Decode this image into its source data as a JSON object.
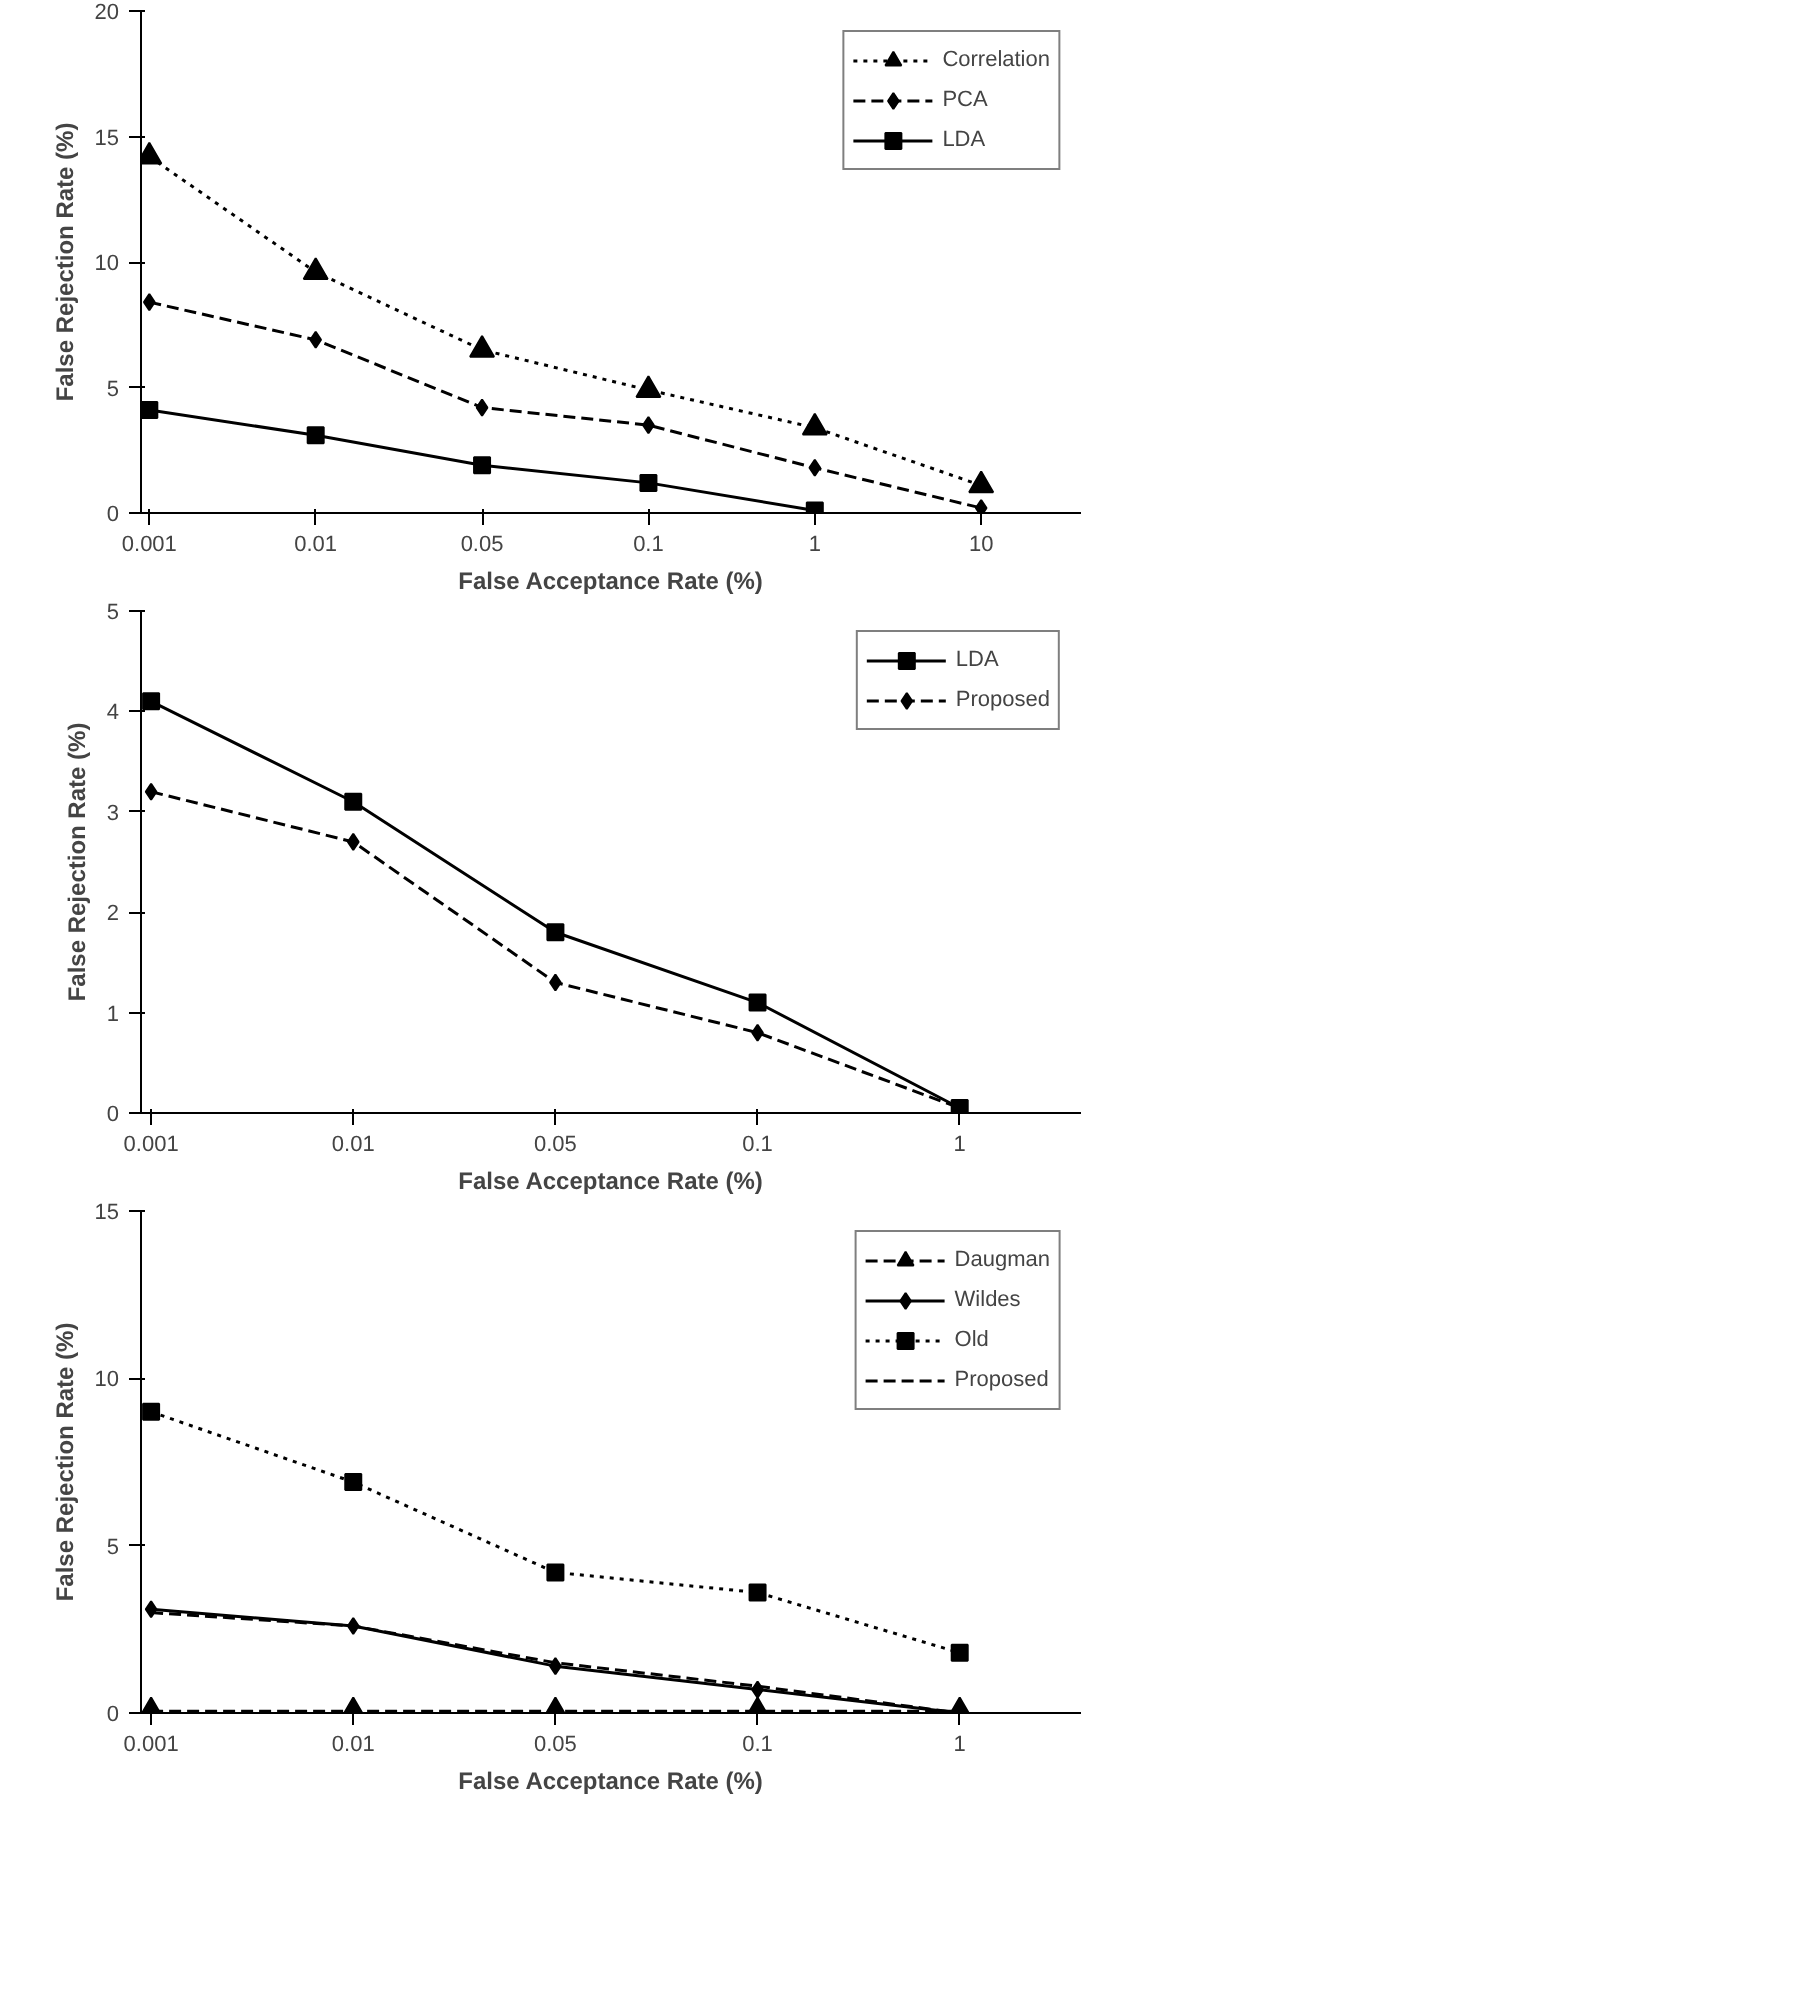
{
  "chart_data": [
    {
      "type": "line",
      "xlabel": "False Acceptance Rate (%)",
      "ylabel": "False Rejection Rate (%)",
      "categories": [
        "0.001",
        "0.01",
        "0.05",
        "0.1",
        "1",
        "10"
      ],
      "ylim": [
        0,
        20
      ],
      "yticks": [
        0,
        5,
        10,
        15,
        20
      ],
      "grid": false,
      "legend": "top right",
      "series": [
        {
          "name": "Correlation",
          "color": "#000000",
          "marker": "triangle",
          "line_style": "dotted",
          "values": [
            14.2,
            9.6,
            6.5,
            4.9,
            3.4,
            1.1
          ]
        },
        {
          "name": "PCA",
          "color": "#000000",
          "marker": "diamond",
          "line_style": "dashed",
          "values": [
            8.4,
            6.9,
            4.2,
            3.5,
            1.8,
            0.2
          ]
        },
        {
          "name": "LDA",
          "color": "#000000",
          "marker": "square",
          "line_style": "solid",
          "values": [
            4.1,
            3.1,
            1.9,
            1.2,
            0.1,
            null
          ]
        }
      ]
    },
    {
      "type": "line",
      "xlabel": "False Acceptance Rate (%)",
      "ylabel": "False Rejection Rate (%)",
      "categories": [
        "0.001",
        "0.01",
        "0.05",
        "0.1",
        "1"
      ],
      "ylim": [
        0,
        5
      ],
      "yticks": [
        0,
        1,
        2,
        3,
        4,
        5
      ],
      "grid": false,
      "legend": "top right",
      "series": [
        {
          "name": "LDA",
          "color": "#000000",
          "marker": "square",
          "line_style": "solid",
          "values": [
            4.1,
            3.1,
            1.8,
            1.1,
            0.05
          ]
        },
        {
          "name": "Proposed",
          "color": "#000000",
          "marker": "diamond",
          "line_style": "dashed",
          "values": [
            3.2,
            2.7,
            1.3,
            0.8,
            0.05
          ]
        }
      ]
    },
    {
      "type": "line",
      "xlabel": "False Acceptance Rate (%)",
      "ylabel": "False Rejection Rate (%)",
      "categories": [
        "0.001",
        "0.01",
        "0.05",
        "0.1",
        "1"
      ],
      "ylim": [
        0,
        15
      ],
      "yticks": [
        0,
        5,
        10,
        15
      ],
      "grid": false,
      "legend": "top right",
      "series": [
        {
          "name": "Daugman",
          "color": "#000000",
          "marker": "triangle",
          "line_style": "dashed",
          "values": [
            0.05,
            0.05,
            0.05,
            0.05,
            0.05
          ]
        },
        {
          "name": "Wildes",
          "color": "#000000",
          "marker": "diamond",
          "line_style": "solid",
          "values": [
            3.1,
            2.6,
            1.4,
            0.7,
            0.0
          ]
        },
        {
          "name": "Old",
          "color": "#000000",
          "marker": "square",
          "line_style": "dotted",
          "values": [
            9.0,
            6.9,
            4.2,
            3.6,
            1.8
          ]
        },
        {
          "name": "Proposed",
          "color": "#000000",
          "marker": "none",
          "line_style": "dashed",
          "values": [
            3.0,
            2.6,
            1.5,
            0.8,
            0.0
          ]
        }
      ]
    }
  ]
}
